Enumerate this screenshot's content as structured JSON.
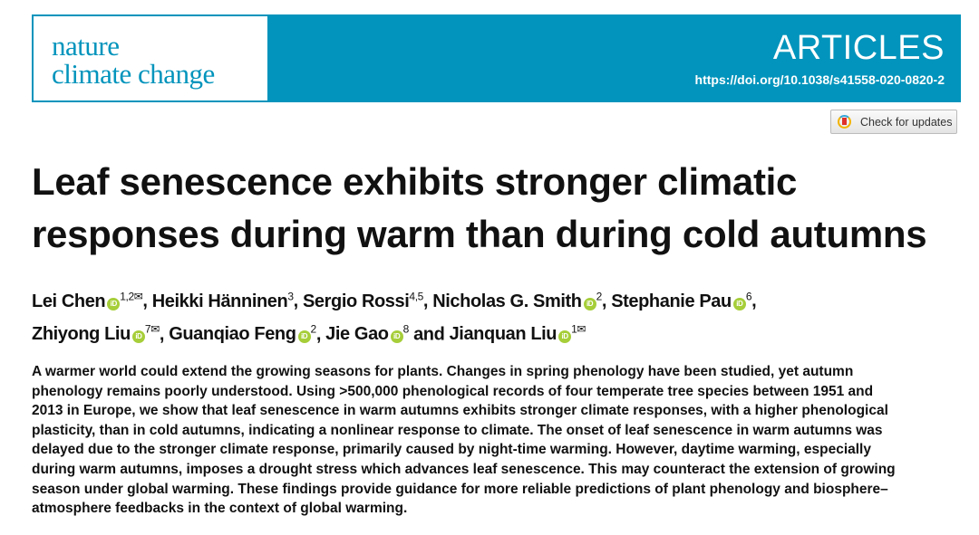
{
  "header": {
    "journal_logo": "nature climate change",
    "journal_line1": "nature",
    "journal_line2": "climate change",
    "section": "ARTICLES",
    "doi": "https://doi.org/10.1038/s41558-020-0820-2",
    "check_updates": "Check for updates",
    "brand_color": "#0294bc"
  },
  "title": {
    "lines": [
      "Leaf senescence exhibits stronger climatic",
      "responses during warm than during cold autumns"
    ]
  },
  "authors": [
    {
      "name": "Lei Chen",
      "orcid": true,
      "aff": "1,2",
      "corresponding": true
    },
    {
      "name": "Heikki Hänninen",
      "orcid": false,
      "aff": "3",
      "corresponding": false
    },
    {
      "name": "Sergio Rossi",
      "orcid": false,
      "aff": "4,5",
      "corresponding": false
    },
    {
      "name": "Nicholas G. Smith",
      "orcid": true,
      "aff": "2",
      "corresponding": false
    },
    {
      "name": "Stephanie Pau",
      "orcid": true,
      "aff": "6",
      "corresponding": false
    },
    {
      "name": "Zhiyong Liu",
      "orcid": true,
      "aff": "7",
      "corresponding": true
    },
    {
      "name": "Guanqiao Feng",
      "orcid": true,
      "aff": "2",
      "corresponding": false
    },
    {
      "name": "Jie Gao",
      "orcid": true,
      "aff": "8",
      "corresponding": false
    },
    {
      "name": "Jianquan Liu",
      "orcid": true,
      "aff": "1",
      "corresponding": true
    }
  ],
  "separators": {
    "comma": ", ",
    "and": " and "
  },
  "abstract": {
    "lines": [
      "A warmer world could extend the growing seasons for plants. Changes in spring phenology have been studied, yet autumn",
      "phenology remains poorly understood. Using >500,000 phenological records of four temperate tree species between 1951 and",
      "2013 in Europe, we show that leaf senescence in warm autumns exhibits stronger climate responses, with a higher phenological",
      "plasticity, than in cold autumns, indicating a nonlinear response to climate. The onset of leaf senescence in warm autumns was",
      "delayed due to the stronger climate response, primarily caused by night-time warming. However, daytime warming, especially",
      "during warm autumns, imposes a drought stress which advances leaf senescence. This may counteract the extension of growing",
      "season under global warming. These findings provide guidance for more reliable predictions of plant phenology and biosphere–",
      "atmosphere feedbacks in the context of global warming."
    ]
  }
}
